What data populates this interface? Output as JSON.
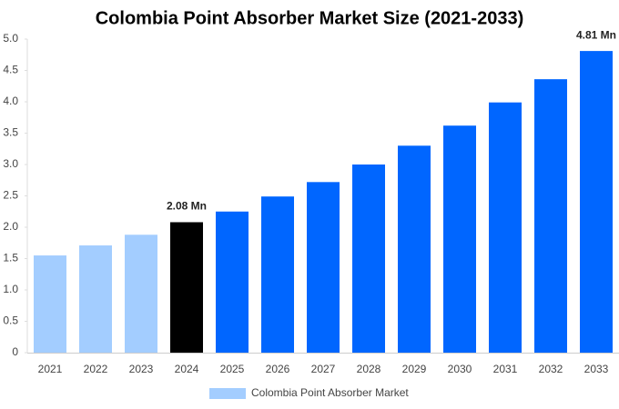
{
  "chart_data": {
    "type": "bar",
    "title": "Colombia Point Absorber Market Size (2021-2033)",
    "categories": [
      "2021",
      "2022",
      "2023",
      "2024",
      "2025",
      "2026",
      "2027",
      "2028",
      "2029",
      "2030",
      "2031",
      "2032",
      "2033"
    ],
    "series": [
      {
        "name": "Colombia Point Absorber Market",
        "color": "#a3cdff",
        "bar_colors": [
          "#a3cdff",
          "#a3cdff",
          "#a3cdff",
          "#000000",
          "#0066ff",
          "#0066ff",
          "#0066ff",
          "#0066ff",
          "#0066ff",
          "#0066ff",
          "#0066ff",
          "#0066ff",
          "#0066ff"
        ],
        "values": [
          1.55,
          1.71,
          1.88,
          2.08,
          2.25,
          2.49,
          2.72,
          3.0,
          3.3,
          3.62,
          3.99,
          4.36,
          4.81
        ],
        "value_labels": [
          null,
          null,
          null,
          "2.08 Mn",
          null,
          null,
          null,
          null,
          null,
          null,
          null,
          null,
          "4.81 Mn"
        ]
      }
    ],
    "ylim": [
      0,
      5
    ],
    "yticks": [
      0,
      0.5,
      {
        "value": 1,
        "label": "1.0"
      },
      1.5,
      {
        "value": 2,
        "label": "2.0"
      },
      2.5,
      {
        "value": 3,
        "label": "3.0"
      },
      3.5,
      {
        "value": 4,
        "label": "4.0"
      },
      4.5,
      {
        "value": 5,
        "label": "5.0"
      }
    ],
    "grid": false
  }
}
